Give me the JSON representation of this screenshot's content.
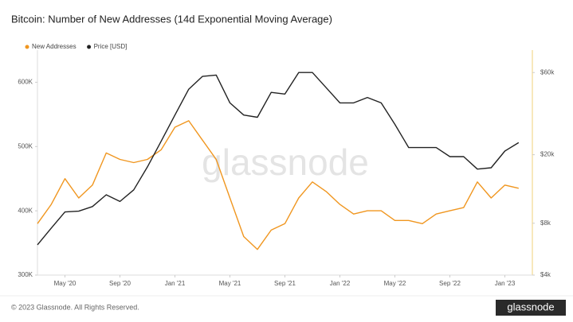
{
  "chart_data": {
    "type": "line",
    "title": "Bitcoin: Number of New Addresses (14d Exponential Moving Average)",
    "watermark": "glassnode",
    "footer": "© 2023 Glassnode. All Rights Reserved.",
    "logo": "glassnode",
    "legend": "top-left",
    "grid": false,
    "x": [
      "2020-03",
      "2020-04",
      "2020-05",
      "2020-06",
      "2020-07",
      "2020-08",
      "2020-09",
      "2020-10",
      "2020-11",
      "2020-12",
      "2021-01",
      "2021-02",
      "2021-03",
      "2021-04",
      "2021-05",
      "2021-06",
      "2021-07",
      "2021-08",
      "2021-09",
      "2021-10",
      "2021-11",
      "2021-12",
      "2022-01",
      "2022-02",
      "2022-03",
      "2022-04",
      "2022-05",
      "2022-06",
      "2022-07",
      "2022-08",
      "2022-09",
      "2022-10",
      "2022-11",
      "2022-12",
      "2023-01",
      "2023-02"
    ],
    "xlim": [
      "2020-03",
      "2023-03"
    ],
    "xticks": [
      {
        "value": "2020-05",
        "label": "May '20"
      },
      {
        "value": "2020-09",
        "label": "Sep '20"
      },
      {
        "value": "2021-01",
        "label": "Jan '21"
      },
      {
        "value": "2021-05",
        "label": "May '21"
      },
      {
        "value": "2021-09",
        "label": "Sep '21"
      },
      {
        "value": "2022-01",
        "label": "Jan '22"
      },
      {
        "value": "2022-05",
        "label": "May '22"
      },
      {
        "value": "2022-09",
        "label": "Sep '22"
      },
      {
        "value": "2023-01",
        "label": "Jan '23"
      }
    ],
    "ylim": [
      300000,
      650000
    ],
    "yticks": [
      {
        "value": 300000,
        "label": "300K"
      },
      {
        "value": 400000,
        "label": "400K"
      },
      {
        "value": 500000,
        "label": "500K"
      },
      {
        "value": 600000,
        "label": "600K"
      }
    ],
    "y2lim": [
      4000,
      81000
    ],
    "y2log": true,
    "y2ticks": [
      {
        "value": 4000,
        "label": "$4k"
      },
      {
        "value": 8000,
        "label": "$8k"
      },
      {
        "value": 20000,
        "label": "$20k"
      },
      {
        "value": 60000,
        "label": "$60k"
      }
    ],
    "series": [
      {
        "name": "New Addresses",
        "color": "#f0961f",
        "axis": "y",
        "values": [
          380000,
          410000,
          450000,
          420000,
          440000,
          490000,
          480000,
          475000,
          480000,
          495000,
          530000,
          540000,
          510000,
          480000,
          420000,
          360000,
          340000,
          370000,
          380000,
          420000,
          445000,
          430000,
          410000,
          395000,
          400000,
          400000,
          385000,
          385000,
          380000,
          395000,
          400000,
          405000,
          445000,
          420000,
          440000,
          435000
        ]
      },
      {
        "name": "Price [USD]",
        "color": "#222222",
        "axis": "y2",
        "values": [
          6000,
          7500,
          9300,
          9400,
          10000,
          11700,
          10700,
          12500,
          17000,
          24000,
          34000,
          48000,
          57000,
          58000,
          40000,
          34000,
          33000,
          46000,
          45000,
          60000,
          60000,
          49000,
          40000,
          40000,
          43000,
          40000,
          30000,
          22000,
          22000,
          22000,
          19500,
          19500,
          16500,
          16800,
          21000,
          23500
        ]
      }
    ]
  }
}
